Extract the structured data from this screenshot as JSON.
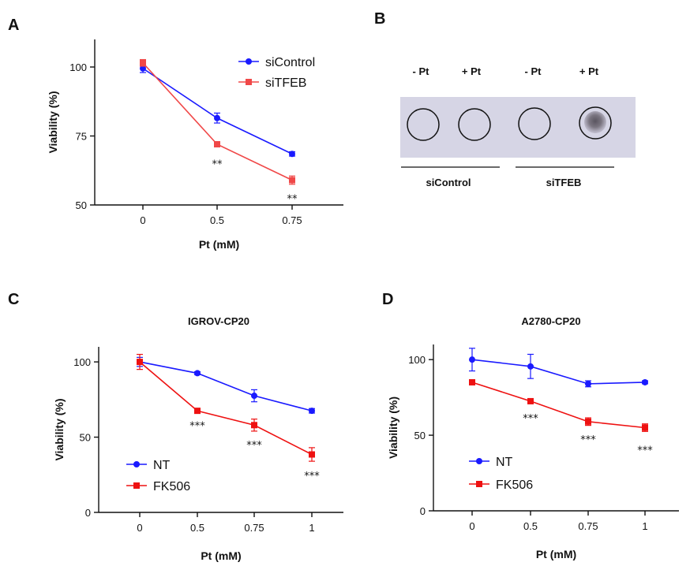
{
  "panels": {
    "A": "A",
    "B": "B",
    "C": "C",
    "D": "D"
  },
  "chart_data": [
    {
      "id": "A",
      "type": "line",
      "title": "",
      "xlabel": "Pt (mM)",
      "ylabel": "Viability (%)",
      "categories": [
        "0",
        "0.5",
        "0.75"
      ],
      "yticks": [
        50,
        75,
        100
      ],
      "ylim": [
        50,
        110
      ],
      "legend_position": "top-right",
      "series": [
        {
          "name": "siControl",
          "color": "#1a1aff",
          "marker": "circle",
          "values": [
            99.5,
            81.5,
            68.5
          ],
          "errors": [
            1.5,
            1.8,
            0.8
          ]
        },
        {
          "name": "siTFEB",
          "color": "#f04848",
          "marker": "square",
          "values": [
            101.5,
            72.0,
            59.0
          ],
          "errors": [
            1.2,
            0.8,
            1.5
          ]
        }
      ],
      "annotations": [
        {
          "category_index": 1,
          "y": 65,
          "text": "**"
        },
        {
          "category_index": 2,
          "y": 52.5,
          "text": "**"
        }
      ]
    },
    {
      "id": "C",
      "type": "line",
      "title": "IGROV-CP20",
      "xlabel": "Pt (mM)",
      "ylabel": "Viability (%)",
      "categories": [
        "0",
        "0.5",
        "0.75",
        "1"
      ],
      "yticks": [
        0,
        50,
        100
      ],
      "ylim": [
        0,
        110
      ],
      "legend_position": "bottom-left",
      "series": [
        {
          "name": "NT",
          "color": "#1a1aff",
          "marker": "circle",
          "values": [
            100,
            92.5,
            77.5,
            67.5
          ],
          "errors": [
            3,
            1,
            4,
            1.5
          ]
        },
        {
          "name": "FK506",
          "color": "#ee1111",
          "marker": "square",
          "values": [
            100,
            67.5,
            58,
            38.5
          ],
          "errors": [
            5,
            1.5,
            4,
            4.5
          ]
        }
      ],
      "annotations": [
        {
          "category_index": 1,
          "y": 58,
          "text": "***"
        },
        {
          "category_index": 2,
          "y": 45,
          "text": "***"
        },
        {
          "category_index": 3,
          "y": 24.5,
          "text": "***"
        }
      ]
    },
    {
      "id": "D",
      "type": "line",
      "title": "A2780-CP20",
      "xlabel": "Pt (mM)",
      "ylabel": "Viability (%)",
      "categories": [
        "0",
        "0.5",
        "0.75",
        "1"
      ],
      "yticks": [
        0,
        50,
        100
      ],
      "ylim": [
        0,
        110
      ],
      "legend_position": "bottom-left",
      "series": [
        {
          "name": "NT",
          "color": "#1a1aff",
          "marker": "circle",
          "values": [
            100,
            95.5,
            84,
            85
          ],
          "errors": [
            7.5,
            8,
            2,
            1
          ]
        },
        {
          "name": "FK506",
          "color": "#ee1111",
          "marker": "square",
          "values": [
            85,
            72.5,
            59,
            55
          ],
          "errors": [
            1,
            1.5,
            2.5,
            2.5
          ]
        }
      ],
      "annotations": [
        {
          "category_index": 1,
          "y": 61.5,
          "text": "***"
        },
        {
          "category_index": 2,
          "y": 47.5,
          "text": "***"
        },
        {
          "category_index": 3,
          "y": 40.5,
          "text": "***"
        }
      ]
    }
  ],
  "blot": {
    "lane_labels": [
      "- Pt",
      "+ Pt",
      "- Pt",
      "+ Pt"
    ],
    "group_labels": [
      "siControl",
      "siTFEB"
    ],
    "dot_signal": [
      "none",
      "none",
      "none",
      "strong"
    ]
  }
}
